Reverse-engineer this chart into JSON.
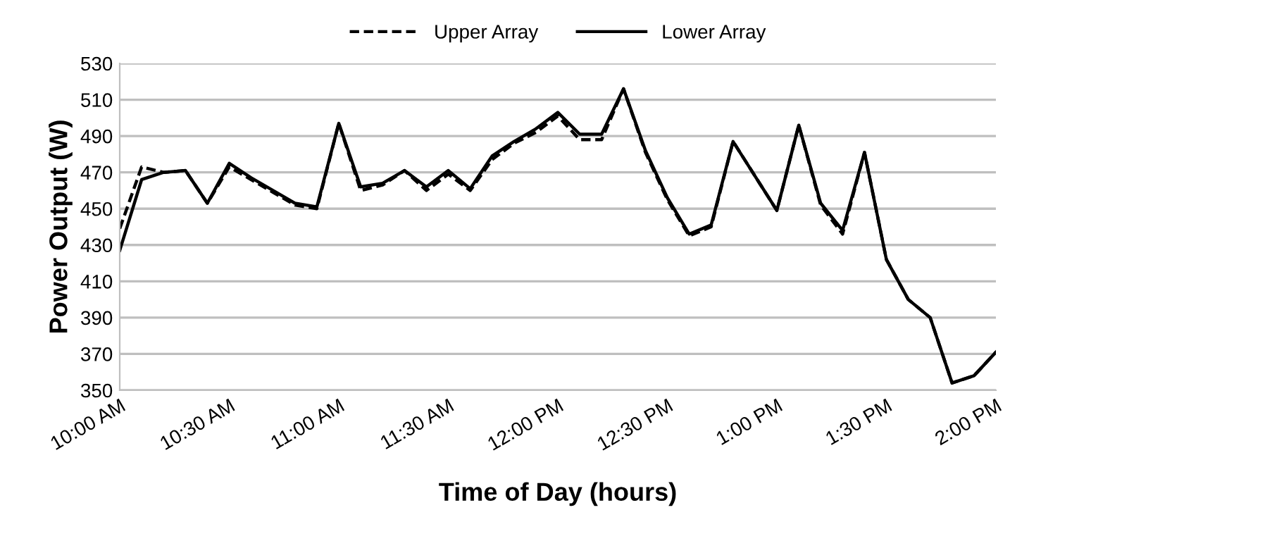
{
  "chart_data": {
    "type": "line",
    "xlabel": "Time of Day (hours)",
    "ylabel": "Power Output (W)",
    "x": [
      10.0,
      10.1,
      10.2,
      10.3,
      10.4,
      10.5,
      10.6,
      10.7,
      10.8,
      10.9,
      11.0,
      11.1,
      11.2,
      11.3,
      11.4,
      11.5,
      11.6,
      11.7,
      11.8,
      11.9,
      12.0,
      12.1,
      12.2,
      12.3,
      12.4,
      12.5,
      12.6,
      12.7,
      12.8,
      12.9,
      13.0,
      13.1,
      13.2,
      13.3,
      13.4,
      13.5,
      13.6,
      13.7,
      13.8,
      13.9,
      14.0
    ],
    "series": [
      {
        "name": "Upper Array",
        "color": "#000000",
        "line_style": "dashed",
        "values": [
          439,
          473,
          470,
          471,
          453,
          473,
          466,
          459,
          452,
          450,
          497,
          460,
          463,
          471,
          460,
          469,
          460,
          477,
          486,
          492,
          501,
          488,
          488,
          516,
          481,
          455,
          435,
          440,
          487,
          468,
          449,
          496,
          452,
          436,
          481,
          422,
          400,
          390,
          354,
          358,
          371
        ]
      },
      {
        "name": "Lower Array",
        "color": "#000000",
        "line_style": "solid",
        "values": [
          427,
          466,
          470,
          471,
          453,
          475,
          467,
          460,
          453,
          451,
          497,
          462,
          464,
          471,
          462,
          471,
          461,
          479,
          487,
          494,
          503,
          491,
          491,
          516,
          482,
          456,
          436,
          441,
          487,
          468,
          449,
          496,
          453,
          438,
          481,
          422,
          400,
          390,
          354,
          358,
          371
        ]
      }
    ],
    "xlim": [
      10.0,
      14.0
    ],
    "xticks": [
      {
        "value": 10.0,
        "label": "10:00 AM"
      },
      {
        "value": 10.5,
        "label": "10:30 AM"
      },
      {
        "value": 11.0,
        "label": "11:00 AM"
      },
      {
        "value": 11.5,
        "label": "11:30 AM"
      },
      {
        "value": 12.0,
        "label": "12:00 PM"
      },
      {
        "value": 12.5,
        "label": "12:30 PM"
      },
      {
        "value": 13.0,
        "label": "1:00 PM"
      },
      {
        "value": 13.5,
        "label": "1:30 PM"
      },
      {
        "value": 14.0,
        "label": "2:00 PM"
      }
    ],
    "ylim": [
      350,
      530
    ],
    "yticks": [
      350,
      370,
      390,
      410,
      430,
      450,
      470,
      490,
      510,
      530
    ],
    "grid": "y",
    "legend": "top",
    "marker": "none"
  }
}
